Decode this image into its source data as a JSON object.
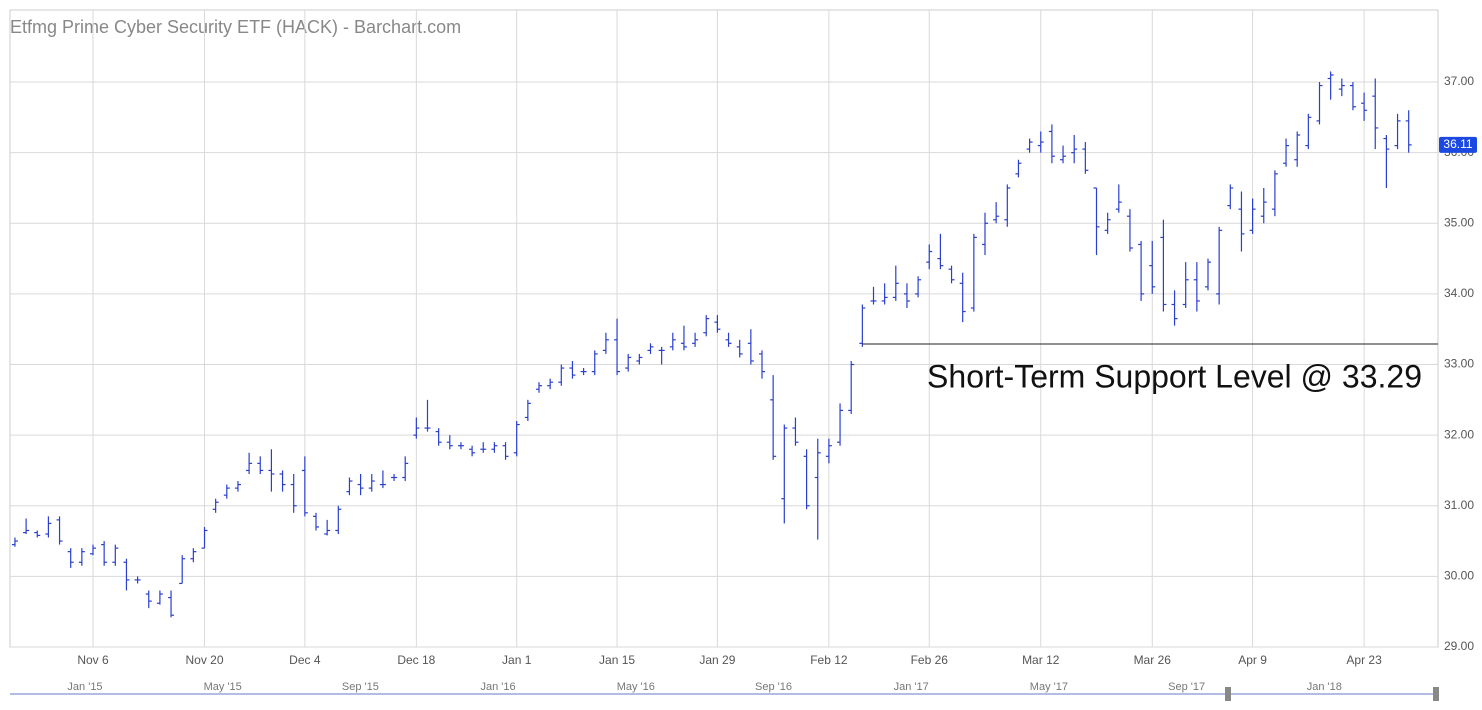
{
  "chart_data": {
    "type": "ohlc",
    "title": "Etfmg Prime Cyber Security ETF (HACK) - Barchart.com",
    "color": "#2a3fcf",
    "categories": [
      null,
      null,
      null,
      null,
      null,
      null,
      null,
      "Nov 6",
      null,
      null,
      null,
      null,
      null,
      null,
      null,
      null,
      null,
      "Nov 20",
      null,
      null,
      null,
      null,
      null,
      null,
      null,
      null,
      "Dec 4",
      null,
      null,
      null,
      null,
      null,
      null,
      null,
      null,
      null,
      "Dec 18",
      null,
      null,
      null,
      null,
      null,
      null,
      null,
      null,
      "Jan 1",
      null,
      null,
      null,
      null,
      null,
      null,
      null,
      null,
      "Jan 15",
      null,
      null,
      null,
      null,
      null,
      null,
      null,
      null,
      "Jan 29",
      null,
      null,
      null,
      null,
      null,
      null,
      null,
      null,
      null,
      "Feb 12",
      null,
      null,
      null,
      null,
      null,
      null,
      null,
      null,
      "Feb 26",
      null,
      null,
      null,
      null,
      null,
      null,
      null,
      null,
      null,
      "Mar 12",
      null,
      null,
      null,
      null,
      null,
      null,
      null,
      null,
      null,
      "Mar 26",
      null,
      null,
      null,
      null,
      null,
      null,
      null,
      null,
      "Apr 9",
      null,
      null,
      null,
      null,
      null,
      null,
      null,
      null,
      null,
      "Apr 23",
      null,
      null,
      null,
      null
    ],
    "open": [
      30.45,
      30.62,
      30.62,
      30.6,
      30.8,
      30.35,
      30.2,
      30.32,
      30.45,
      30.2,
      30.2,
      29.95,
      29.75,
      29.62,
      29.7,
      29.9,
      30.25,
      30.4,
      30.95,
      31.15,
      31.25,
      31.5,
      31.6,
      31.5,
      31.45,
      31.3,
      31.5,
      30.85,
      30.6,
      30.65,
      31.2,
      31.3,
      31.25,
      31.3,
      31.4,
      31.4,
      32.0,
      32.1,
      32.05,
      31.9,
      31.85,
      31.8,
      31.8,
      31.8,
      31.85,
      31.75,
      32.25,
      32.65,
      32.7,
      32.75,
      32.95,
      32.9,
      32.9,
      33.2,
      33.35,
      32.95,
      33.05,
      33.2,
      33.2,
      33.25,
      33.3,
      33.3,
      33.45,
      33.6,
      33.35,
      33.25,
      33.3,
      33.15,
      32.5,
      31.1,
      32.1,
      31.7,
      31.4,
      31.7,
      31.9,
      32.35,
      33.3,
      33.9,
      33.9,
      33.95,
      34.0,
      34.0,
      34.45,
      34.5,
      34.35,
      34.15,
      33.8,
      34.7,
      35.05,
      35.05,
      35.7,
      36.05,
      36.1,
      36.3,
      35.9,
      36.0,
      36.05,
      35.5,
      34.9,
      35.2,
      35.1,
      34.7,
      34.4,
      34.8,
      33.85,
      33.85,
      34.2,
      34.1,
      34.0,
      35.25,
      35.2,
      34.9,
      35.1,
      35.2,
      35.85,
      35.9,
      36.1,
      36.45,
      37.05,
      36.9,
      36.95,
      36.7,
      36.8,
      36.2,
      36.1,
      36.45
    ],
    "high": [
      30.55,
      30.82,
      30.65,
      30.85,
      30.85,
      30.4,
      30.4,
      30.45,
      30.5,
      30.45,
      30.25,
      30.0,
      29.8,
      29.8,
      29.8,
      30.3,
      30.4,
      30.7,
      31.1,
      31.3,
      31.35,
      31.75,
      31.7,
      31.8,
      31.5,
      31.45,
      31.7,
      30.9,
      30.8,
      31.0,
      31.4,
      31.45,
      31.45,
      31.5,
      31.45,
      31.7,
      32.25,
      32.5,
      32.1,
      32.0,
      31.9,
      31.85,
      31.9,
      31.9,
      31.9,
      32.2,
      32.5,
      32.75,
      32.8,
      33.0,
      33.05,
      32.95,
      33.2,
      33.45,
      33.65,
      33.15,
      33.15,
      33.3,
      33.25,
      33.45,
      33.55,
      33.45,
      33.7,
      33.7,
      33.45,
      33.35,
      33.5,
      33.2,
      32.85,
      32.15,
      32.25,
      31.8,
      31.95,
      31.95,
      32.45,
      33.05,
      33.85,
      34.1,
      34.15,
      34.4,
      34.15,
      34.25,
      34.7,
      34.85,
      34.4,
      34.3,
      34.85,
      35.15,
      35.3,
      35.55,
      35.9,
      36.2,
      36.3,
      36.4,
      36.1,
      36.25,
      36.15,
      35.5,
      35.15,
      35.55,
      35.2,
      34.75,
      34.75,
      35.05,
      34.05,
      34.45,
      34.45,
      34.5,
      34.95,
      35.55,
      35.45,
      35.35,
      35.5,
      35.75,
      36.2,
      36.3,
      36.55,
      37.0,
      37.15,
      37.05,
      37.0,
      36.85,
      37.05,
      36.25,
      36.55,
      36.6
    ],
    "low": [
      30.42,
      30.6,
      30.55,
      30.55,
      30.45,
      30.12,
      30.15,
      30.3,
      30.15,
      30.15,
      29.8,
      29.9,
      29.55,
      29.6,
      29.42,
      29.9,
      30.2,
      30.4,
      30.9,
      31.1,
      31.2,
      31.45,
      31.45,
      31.2,
      31.2,
      30.9,
      30.85,
      30.65,
      30.58,
      30.6,
      31.15,
      31.15,
      31.2,
      31.25,
      31.35,
      31.35,
      31.95,
      32.05,
      31.85,
      31.8,
      31.8,
      31.7,
      31.75,
      31.75,
      31.65,
      31.7,
      32.2,
      32.6,
      32.65,
      32.7,
      32.8,
      32.85,
      32.85,
      33.15,
      32.85,
      32.9,
      33.0,
      33.15,
      33.0,
      33.2,
      33.2,
      33.25,
      33.4,
      33.45,
      33.25,
      33.1,
      33.0,
      32.8,
      31.65,
      30.75,
      31.85,
      30.95,
      30.52,
      31.6,
      31.85,
      32.3,
      33.25,
      33.85,
      33.85,
      33.9,
      33.8,
      33.95,
      34.35,
      34.35,
      34.15,
      33.6,
      33.75,
      34.55,
      35.0,
      34.95,
      35.65,
      36.0,
      36.0,
      35.85,
      35.85,
      35.85,
      35.7,
      34.55,
      34.85,
      35.15,
      34.6,
      33.9,
      34.0,
      33.75,
      33.55,
      33.8,
      33.75,
      34.05,
      33.85,
      35.2,
      34.6,
      34.85,
      35.0,
      35.1,
      35.8,
      35.8,
      36.05,
      36.4,
      36.75,
      36.8,
      36.6,
      36.45,
      36.05,
      35.5,
      36.05,
      36.0
    ],
    "close": [
      30.5,
      30.65,
      30.58,
      30.75,
      30.5,
      30.2,
      30.35,
      30.4,
      30.2,
      30.4,
      29.95,
      29.95,
      29.65,
      29.75,
      29.45,
      30.25,
      30.35,
      30.65,
      31.05,
      31.25,
      31.3,
      31.6,
      31.5,
      31.45,
      31.3,
      31.0,
      30.9,
      30.7,
      30.65,
      30.95,
      31.35,
      31.25,
      31.35,
      31.3,
      31.4,
      31.6,
      32.1,
      32.1,
      31.9,
      31.85,
      31.85,
      31.75,
      31.8,
      31.85,
      31.7,
      32.15,
      32.45,
      32.7,
      32.75,
      32.95,
      32.85,
      32.9,
      33.15,
      33.35,
      32.9,
      33.1,
      33.1,
      33.25,
      33.2,
      33.35,
      33.25,
      33.35,
      33.65,
      33.5,
      33.3,
      33.15,
      33.05,
      32.9,
      31.7,
      32.1,
      31.9,
      31.0,
      31.75,
      31.85,
      32.35,
      33.0,
      33.8,
      33.9,
      33.95,
      34.15,
      33.9,
      34.2,
      34.6,
      34.4,
      34.2,
      33.75,
      34.8,
      35.0,
      35.1,
      35.5,
      35.85,
      36.15,
      36.15,
      35.95,
      35.95,
      36.05,
      35.75,
      34.95,
      35.05,
      35.3,
      34.65,
      34.0,
      34.1,
      33.85,
      33.65,
      34.2,
      33.9,
      34.45,
      34.9,
      35.5,
      34.85,
      35.2,
      35.3,
      35.7,
      36.1,
      36.25,
      36.5,
      36.95,
      37.1,
      36.95,
      36.65,
      36.6,
      36.35,
      36.05,
      36.45,
      36.11
    ],
    "ylim": [
      29,
      38.02
    ],
    "yticks": [
      {
        "value": 29,
        "label": "29.00"
      },
      {
        "value": 30,
        "label": "30.00"
      },
      {
        "value": 31,
        "label": "31.00"
      },
      {
        "value": 32,
        "label": "32.00"
      },
      {
        "value": 33,
        "label": "33.00"
      },
      {
        "value": 34,
        "label": "34.00"
      },
      {
        "value": 35,
        "label": "35.00"
      },
      {
        "value": 36,
        "label": "36.00"
      },
      {
        "value": 37,
        "label": "37.00"
      }
    ],
    "grid": true,
    "support": {
      "value": 33.29,
      "label": "Short-Term Support Level @ 33.29"
    },
    "navigator_labels": [
      "Jan '15",
      "May '15",
      "Sep '15",
      "Jan '16",
      "May '16",
      "Sep '16",
      "Jan '17",
      "May '17",
      "Sep '17",
      "Jan '18"
    ]
  }
}
